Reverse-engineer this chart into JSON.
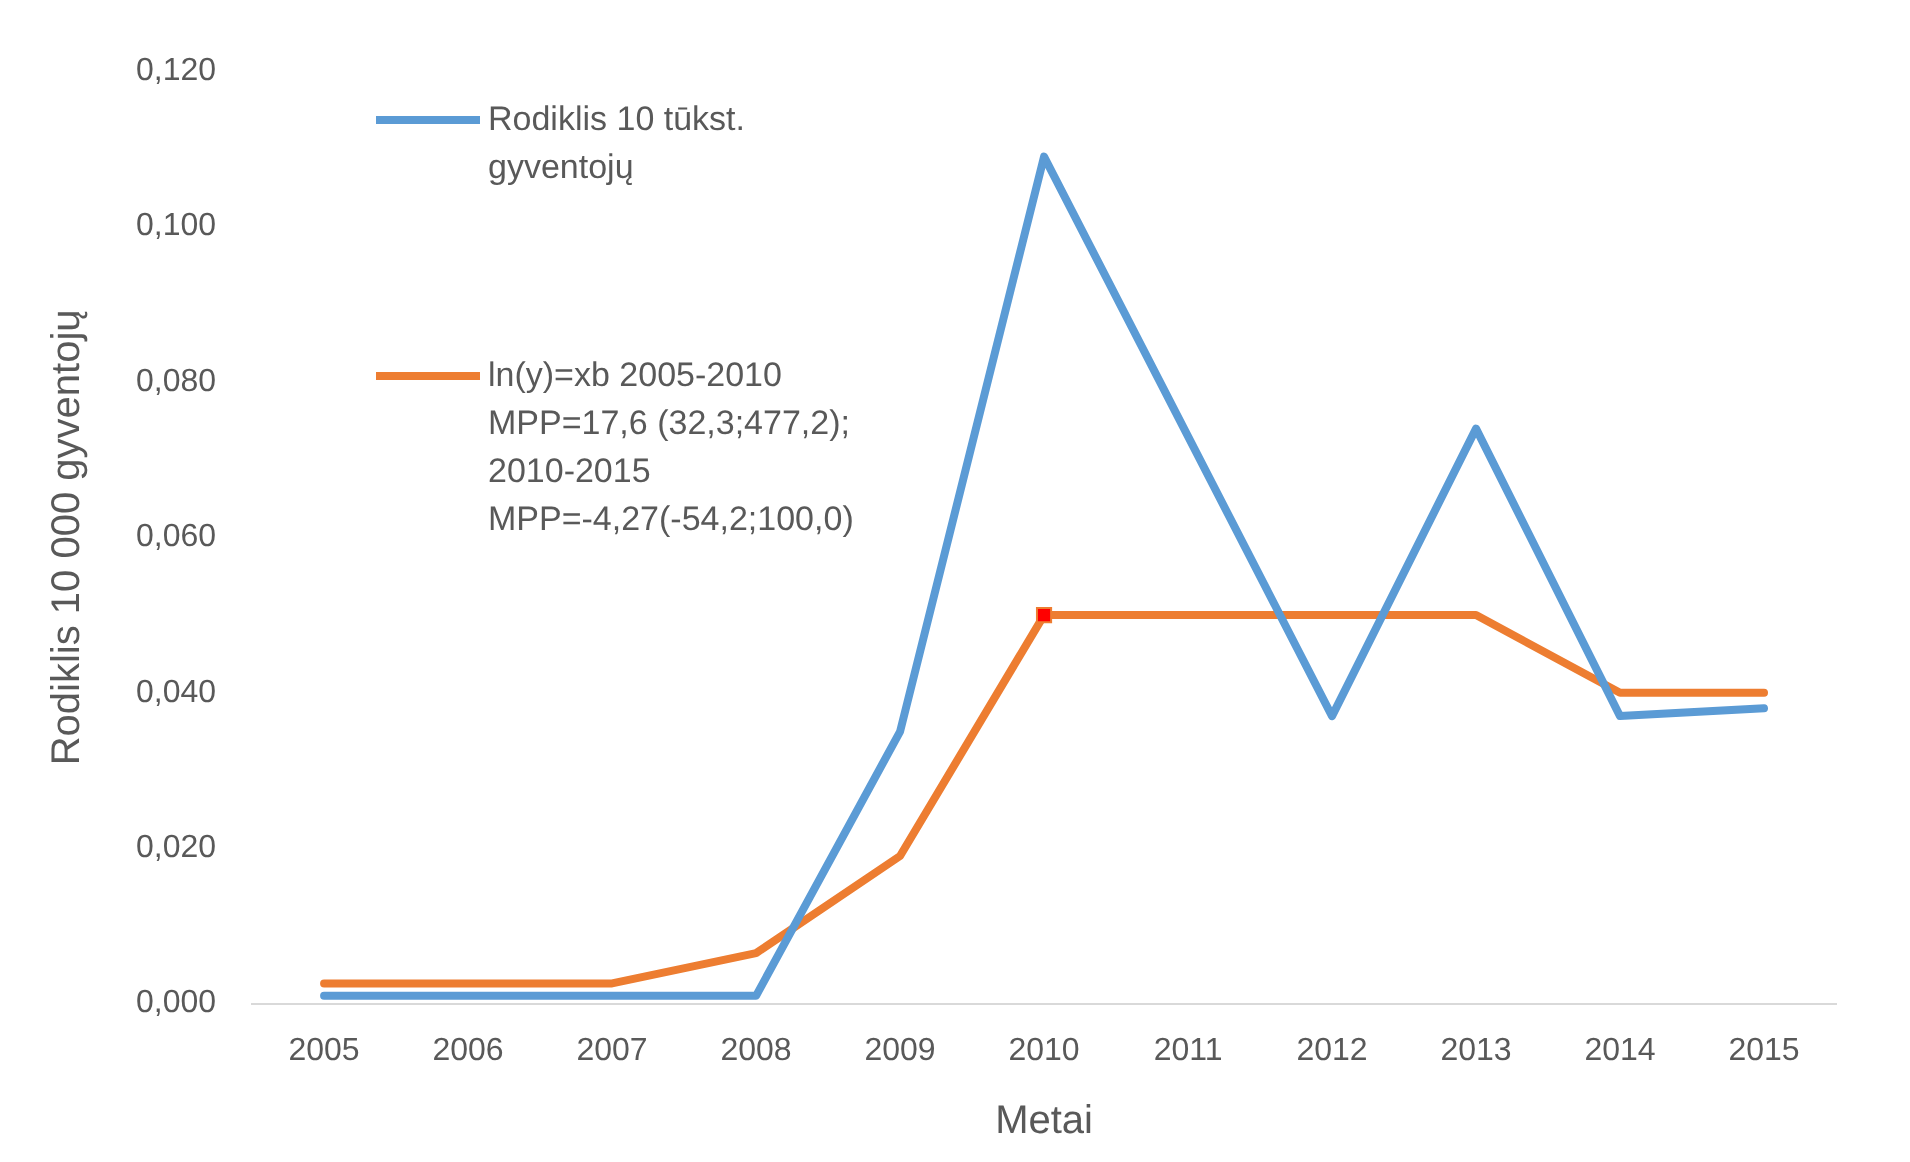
{
  "chart_data": {
    "type": "line",
    "xlabel": "Metai",
    "ylabel": "Rodiklis 10 000 gyventojų",
    "categories": [
      "2005",
      "2006",
      "2007",
      "2008",
      "2009",
      "2010",
      "2011",
      "2012",
      "2013",
      "2014",
      "2015"
    ],
    "series": [
      {
        "name": "Rodiklis 10 tūkst. gyventojų",
        "color": "#5b9bd5",
        "values": [
          0.001,
          0.001,
          0.001,
          0.001,
          0.035,
          0.109,
          0.073,
          0.037,
          0.074,
          0.037,
          0.038
        ]
      },
      {
        "name": "ln(y)=xb 2005-2010 MPP=17,6 (32,3;477,2); 2010-2015 MPP=-4,27(-54,2;100,0)",
        "color": "#ed7d31",
        "values": [
          0.0026,
          0.0026,
          0.0026,
          0.0065,
          0.019,
          0.05,
          0.05,
          0.05,
          0.05,
          0.04,
          0.04
        ]
      },
      {
        "type": "scatter",
        "color": "#ff0000",
        "marker": "square",
        "values": [
          null,
          null,
          null,
          null,
          null,
          0.05,
          null,
          null,
          null,
          null,
          null
        ]
      }
    ],
    "ylim": [
      0,
      0.12
    ],
    "yticks": [
      {
        "value": 0,
        "label": "0,000"
      },
      {
        "value": 0.02,
        "label": "0,020"
      },
      {
        "value": 0.04,
        "label": "0,040"
      },
      {
        "value": 0.06,
        "label": "0,060"
      },
      {
        "value": 0.08,
        "label": "0,080"
      },
      {
        "value": 0.1,
        "label": "0,100"
      },
      {
        "value": 0.12,
        "label": "0,120"
      }
    ],
    "grid": false,
    "legend": "top left",
    "marker": "none",
    "line_style": "solid"
  }
}
